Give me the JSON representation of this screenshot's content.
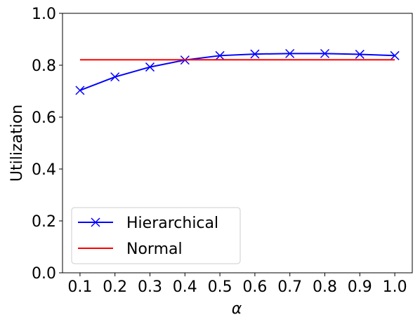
{
  "chart_data": {
    "type": "line",
    "title": "",
    "xlabel": "α",
    "ylabel": "Utilization",
    "xlim": [
      0.05,
      1.05
    ],
    "ylim": [
      0.0,
      1.0
    ],
    "grid": false,
    "legend_position": "lower-left",
    "x": [
      0.1,
      0.2,
      0.3,
      0.4,
      0.5,
      0.6,
      0.7,
      0.8,
      0.9,
      1.0
    ],
    "x_ticks": [
      "0.1",
      "0.2",
      "0.3",
      "0.4",
      "0.5",
      "0.6",
      "0.7",
      "0.8",
      "0.9",
      "1.0"
    ],
    "y_ticks": [
      "0.0",
      "0.2",
      "0.4",
      "0.6",
      "0.8",
      "1.0"
    ],
    "series": [
      {
        "name": "Hierarchical",
        "color": "#0000ff",
        "marker": "x",
        "values": [
          0.703,
          0.755,
          0.793,
          0.82,
          0.837,
          0.843,
          0.845,
          0.845,
          0.842,
          0.837
        ]
      },
      {
        "name": "Normal",
        "color": "#ff0000",
        "marker": "none",
        "values": [
          0.821,
          0.821,
          0.821,
          0.821,
          0.821,
          0.821,
          0.821,
          0.821,
          0.821,
          0.821
        ]
      }
    ]
  }
}
